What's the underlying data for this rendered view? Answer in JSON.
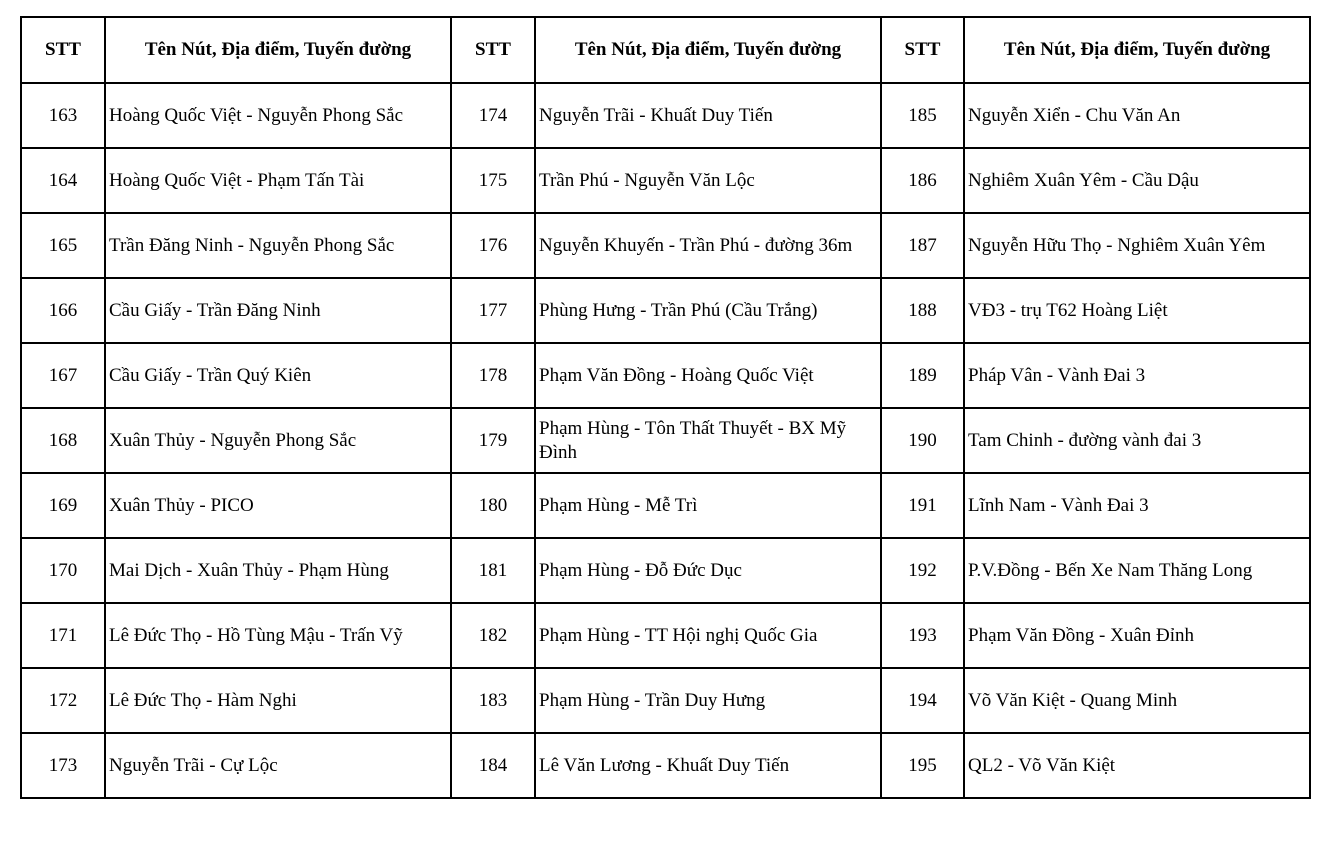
{
  "headers": [
    "STT",
    "Tên Nút, Địa điểm, Tuyến đường",
    "STT",
    "Tên Nút, Địa điểm, Tuyến đường",
    "STT",
    "Tên Nút, Địa điểm, Tuyến đường"
  ],
  "rows": [
    [
      "163",
      "Hoàng Quốc Việt - Nguyễn Phong Sắc",
      "174",
      "Nguyễn Trãi - Khuất Duy Tiến",
      "185",
      "Nguyễn Xiển - Chu Văn An"
    ],
    [
      "164",
      "Hoàng Quốc Việt - Phạm Tấn Tài",
      "175",
      "Trần Phú - Nguyễn Văn Lộc",
      "186",
      "Nghiêm Xuân Yêm - Cầu Dậu"
    ],
    [
      "165",
      "Trần Đăng Ninh - Nguyễn Phong Sắc",
      "176",
      "Nguyễn Khuyến - Trần Phú - đường 36m",
      "187",
      "Nguyễn Hữu Thọ - Nghiêm Xuân Yêm"
    ],
    [
      "166",
      "Cầu Giấy - Trần Đăng Ninh",
      "177",
      "Phùng Hưng - Trần Phú (Cầu Trắng)",
      "188",
      "VĐ3 - trụ T62 Hoàng Liệt"
    ],
    [
      "167",
      "Cầu Giấy - Trần Quý Kiên",
      "178",
      "Phạm Văn Đồng - Hoàng Quốc Việt",
      "189",
      "Pháp Vân - Vành Đai 3"
    ],
    [
      "168",
      "Xuân Thủy - Nguyễn Phong Sắc",
      "179",
      "Phạm Hùng - Tôn Thất Thuyết - BX Mỹ Đình",
      "190",
      "Tam Chinh - đường vành đai 3"
    ],
    [
      "169",
      "Xuân Thủy - PICO",
      "180",
      "Phạm Hùng - Mễ Trì",
      "191",
      "Lĩnh Nam - Vành Đai 3"
    ],
    [
      "170",
      "Mai Dịch - Xuân Thủy - Phạm Hùng",
      "181",
      "Phạm Hùng - Đỗ Đức Dục",
      "192",
      "P.V.Đồng - Bến Xe Nam Thăng Long"
    ],
    [
      "171",
      "Lê Đức Thọ - Hồ Tùng Mậu - Trấn Vỹ",
      "182",
      "Phạm Hùng - TT Hội nghị Quốc Gia",
      "193",
      "Phạm Văn Đồng - Xuân Đỉnh"
    ],
    [
      "172",
      "Lê Đức Thọ - Hàm Nghi",
      "183",
      "Phạm Hùng - Trần Duy Hưng",
      "194",
      "Võ Văn Kiệt - Quang Minh"
    ],
    [
      "173",
      "Nguyễn Trãi - Cự Lộc",
      "184",
      "Lê Văn Lương - Khuất Duy Tiến",
      "195",
      "QL2 - Võ Văn Kiệt"
    ]
  ]
}
